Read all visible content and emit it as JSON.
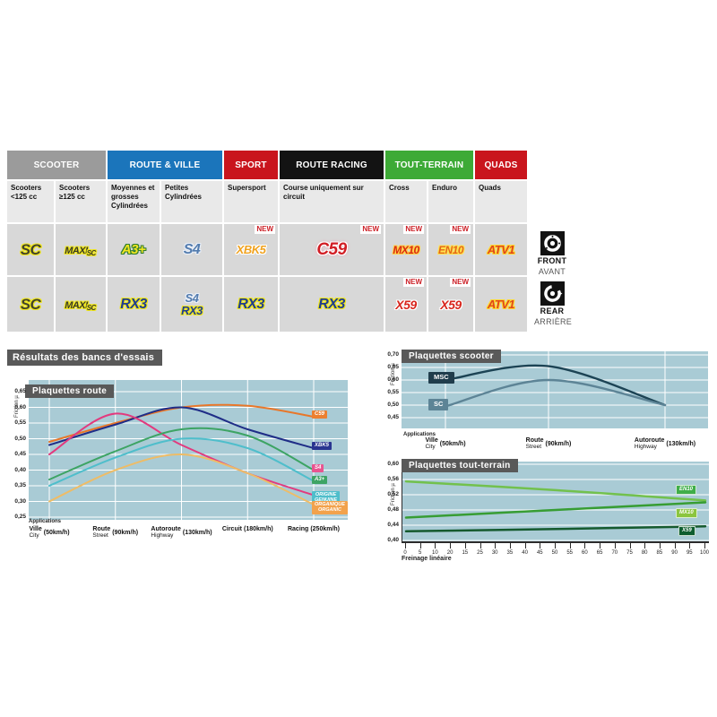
{
  "table": {
    "groups": [
      {
        "label": "SCOOTER",
        "color": "#9b9b9b",
        "span": 2
      },
      {
        "label": "ROUTE & VILLE",
        "color": "#1b75bb",
        "span": 2
      },
      {
        "label": "SPORT",
        "color": "#c9151d",
        "span": 1
      },
      {
        "label": "ROUTE RACING",
        "color": "#131313",
        "span": 1
      },
      {
        "label": "TOUT-TERRAIN",
        "color": "#3daa36",
        "span": 2
      },
      {
        "label": "QUADS",
        "color": "#c9151d",
        "span": 1
      }
    ],
    "subheaders": [
      "Scooters <125 cc",
      "Scooters ≥125 cc",
      "Moyennes et grosses Cylindrées",
      "Petites Cylindrées",
      "Supersport",
      "Course uniquement sur circuit",
      "Cross",
      "Enduro",
      "Quads"
    ],
    "front": [
      {
        "products": [
          "SC"
        ],
        "new": false
      },
      {
        "products": [
          "MAXI SC"
        ],
        "new": false
      },
      {
        "products": [
          "A3+"
        ],
        "new": false
      },
      {
        "products": [
          "S4"
        ],
        "new": false
      },
      {
        "products": [
          "XBK5"
        ],
        "new": true
      },
      {
        "products": [
          "C59"
        ],
        "new": true
      },
      {
        "products": [
          "MX10"
        ],
        "new": true
      },
      {
        "products": [
          "EN10"
        ],
        "new": true
      },
      {
        "products": [
          "ATV1"
        ],
        "new": false
      }
    ],
    "rear": [
      {
        "products": [
          "SC"
        ],
        "new": false
      },
      {
        "products": [
          "MAXI SC"
        ],
        "new": false
      },
      {
        "products": [
          "RX3"
        ],
        "new": false
      },
      {
        "products": [
          "S4",
          "RX3"
        ],
        "new": false
      },
      {
        "products": [
          "RX3"
        ],
        "new": false
      },
      {
        "products": [
          "RX3"
        ],
        "new": false
      },
      {
        "products": [
          "X59"
        ],
        "new": true
      },
      {
        "products": [
          "X59"
        ],
        "new": true
      },
      {
        "products": [
          "ATV1"
        ],
        "new": false
      }
    ],
    "new_label": "NEW"
  },
  "side": {
    "front": "FRONT",
    "front_fr": "AVANT",
    "rear": "REAR",
    "rear_fr": "ARRIÈRE"
  },
  "results_title": "Résultats des bancs d'essais",
  "chart_data": [
    {
      "id": "route",
      "type": "line",
      "title": "Plaquettes route",
      "ylabel": "Friction µ",
      "applications_label": "Applications",
      "ylim": [
        0.25,
        0.65
      ],
      "yticks": [
        0.65,
        0.6,
        0.55,
        0.5,
        0.45,
        0.4,
        0.35,
        0.3,
        0.25
      ],
      "categories": [
        {
          "fr": "Ville",
          "en": "City",
          "speed": "(50km/h)"
        },
        {
          "fr": "Route",
          "en": "Street",
          "speed": "(90km/h)"
        },
        {
          "fr": "Autoroute",
          "en": "Highway",
          "speed": "(130km/h)"
        },
        {
          "fr": "Circuit",
          "en": "",
          "speed": "(180km/h)"
        },
        {
          "fr": "Racing",
          "en": "",
          "speed": "(250km/h)"
        }
      ],
      "series": [
        {
          "name": "C59",
          "color": "#e8772a",
          "badge_bg": "#ec8030",
          "badge_lines": [
            "C59"
          ],
          "values": [
            0.49,
            0.55,
            0.6,
            0.605,
            0.57
          ]
        },
        {
          "name": "XBK5",
          "color": "#1f2d87",
          "badge_bg": "#2a3490",
          "badge_lines": [
            "XBK5"
          ],
          "values": [
            0.48,
            0.545,
            0.6,
            0.53,
            0.47
          ]
        },
        {
          "name": "S4",
          "color": "#e23a7e",
          "badge_bg": "#e85490",
          "badge_lines": [
            "S4"
          ],
          "values": [
            0.45,
            0.58,
            0.48,
            0.39,
            0.32
          ]
        },
        {
          "name": "A3+",
          "color": "#3da464",
          "badge_bg": "#3da464",
          "badge_lines": [
            "A3+"
          ],
          "values": [
            0.37,
            0.46,
            0.53,
            0.51,
            0.4
          ]
        },
        {
          "name": "ORIGINE / GENUINE",
          "color": "#4fbecb",
          "badge_bg": "#4fbecb",
          "badge_lines": [
            "ORIGINE",
            "GENUINE"
          ],
          "values": [
            0.35,
            0.44,
            0.5,
            0.47,
            0.365
          ]
        },
        {
          "name": "ORGANIQUE / ORGANIC",
          "color": "#eebc66",
          "badge_bg": "#f2a24c",
          "badge_lines": [
            "ORGANIQUE",
            "ORGANIC"
          ],
          "values": [
            0.3,
            0.4,
            0.45,
            0.39,
            0.29
          ]
        }
      ]
    },
    {
      "id": "scooter",
      "type": "line",
      "title": "Plaquettes scooter",
      "ylabel": "Friction µ",
      "applications_label": "Applications",
      "ylim": [
        0.45,
        0.7
      ],
      "yticks": [
        0.7,
        0.65,
        0.6,
        0.55,
        0.5,
        0.45
      ],
      "categories": [
        {
          "fr": "Ville",
          "en": "City",
          "speed": "(50km/h)"
        },
        {
          "fr": "Route",
          "en": "Street",
          "speed": "(90km/h)"
        },
        {
          "fr": "Autoroute",
          "en": "Highway",
          "speed": "(130km/h)"
        }
      ],
      "series": [
        {
          "name": "MSC",
          "color": "#1c4354",
          "badge_bg": "#203d4c",
          "badge_lines": [
            "MSC"
          ],
          "values": [
            0.6,
            0.655,
            0.5
          ]
        },
        {
          "name": "SC",
          "color": "#5d8496",
          "badge_bg": "#5d8496",
          "badge_lines": [
            "SC"
          ],
          "values": [
            0.495,
            0.6,
            0.5
          ]
        }
      ]
    },
    {
      "id": "tout_terrain",
      "type": "line",
      "title": "Plaquettes tout-terrain",
      "ylabel": "Friction µ",
      "xlabel": "Freinage linéaire",
      "ylim": [
        0.4,
        0.6
      ],
      "yticks": [
        0.6,
        0.56,
        0.52,
        0.48,
        0.44,
        0.4
      ],
      "xtick_labels": [
        "0",
        "5",
        "10",
        "20",
        "15",
        "25",
        "30",
        "35",
        "40",
        "45",
        "50",
        "55",
        "60",
        "65",
        "70",
        "75",
        "80",
        "85",
        "90",
        "95",
        "100"
      ],
      "series": [
        {
          "name": "EN10",
          "color": "#72c14d",
          "badge_bg": "#3fae49",
          "badge_lines": [
            "EN10"
          ],
          "points": [
            [
              0,
              0.555
            ],
            [
              50,
              0.532
            ],
            [
              100,
              0.505
            ]
          ]
        },
        {
          "name": "MX10",
          "color": "#379d33",
          "badge_bg": "#8bc53f",
          "badge_lines": [
            "MX10"
          ],
          "points": [
            [
              0,
              0.46
            ],
            [
              50,
              0.48
            ],
            [
              100,
              0.5
            ]
          ]
        },
        {
          "name": "X59",
          "color": "#155a2e",
          "badge_bg": "#0e5e2f",
          "badge_lines": [
            "X59"
          ],
          "points": [
            [
              0,
              0.424
            ],
            [
              50,
              0.43
            ],
            [
              100,
              0.437
            ]
          ]
        }
      ]
    }
  ]
}
